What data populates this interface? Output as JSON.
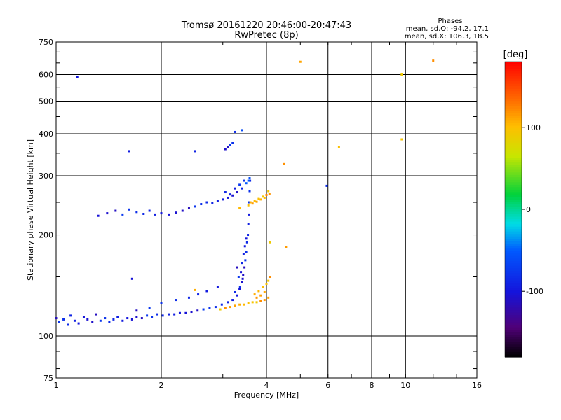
{
  "chart_data": {
    "type": "scatter",
    "title": "Tromsø 20161220 20:46:00-20:47:43",
    "subtitle": "RwPretec (8p)",
    "xlabel": "Frequency [MHz]",
    "ylabel": "Stationary phase Virtual Height [km]",
    "x_scale": "log",
    "y_scale": "log",
    "xlim": [
      1,
      16
    ],
    "ylim": [
      75,
      750
    ],
    "x_ticks": [
      1,
      2,
      4,
      6,
      8,
      10,
      16
    ],
    "x_tick_labels": [
      "1",
      "2",
      "4",
      "6",
      "8",
      "10",
      "16"
    ],
    "y_ticks": [
      75,
      100,
      200,
      300,
      400,
      500,
      600,
      750
    ],
    "y_tick_labels": [
      "75",
      "100",
      "200",
      "300",
      "400",
      "500",
      "600",
      "750"
    ],
    "x_gridlines": [
      2,
      4,
      6,
      8,
      10
    ],
    "y_gridlines": [
      100,
      200,
      300,
      400,
      500,
      600
    ],
    "legend": {
      "heading": "Phases",
      "line1": "mean, sd,O: -94.2, 17.1",
      "line2": "mean, sd,X: 106.3, 18.5"
    },
    "colorbar": {
      "label": "[deg]",
      "min": -180,
      "max": 180,
      "ticks": [
        100,
        0,
        -100
      ],
      "tick_labels": [
        "100",
        "0",
        "-100"
      ]
    },
    "series": [
      {
        "name": "O",
        "points": [
          [
            1.0,
            113
          ],
          [
            1.02,
            110
          ],
          [
            1.05,
            112
          ],
          [
            1.08,
            108
          ],
          [
            1.1,
            115
          ],
          [
            1.13,
            111
          ],
          [
            1.16,
            109
          ],
          [
            1.2,
            114
          ],
          [
            1.23,
            112
          ],
          [
            1.27,
            110
          ],
          [
            1.3,
            116
          ],
          [
            1.34,
            111
          ],
          [
            1.38,
            113
          ],
          [
            1.42,
            110
          ],
          [
            1.46,
            112
          ],
          [
            1.5,
            114
          ],
          [
            1.55,
            111
          ],
          [
            1.6,
            113
          ],
          [
            1.65,
            112
          ],
          [
            1.7,
            114
          ],
          [
            1.76,
            113
          ],
          [
            1.82,
            115
          ],
          [
            1.88,
            114
          ],
          [
            1.95,
            116
          ],
          [
            2.02,
            115
          ],
          [
            2.1,
            116
          ],
          [
            2.18,
            116
          ],
          [
            2.26,
            117
          ],
          [
            2.35,
            117
          ],
          [
            2.44,
            118
          ],
          [
            2.54,
            119
          ],
          [
            2.64,
            120
          ],
          [
            2.75,
            121
          ],
          [
            2.86,
            122
          ],
          [
            2.98,
            124
          ],
          [
            3.1,
            126
          ],
          [
            3.2,
            128
          ],
          [
            3.3,
            132
          ],
          [
            3.35,
            138
          ],
          [
            3.4,
            145
          ],
          [
            3.43,
            152
          ],
          [
            3.46,
            160
          ],
          [
            3.48,
            168
          ],
          [
            3.5,
            178
          ],
          [
            3.52,
            190
          ],
          [
            3.54,
            200
          ],
          [
            3.55,
            215
          ],
          [
            3.56,
            230
          ],
          [
            3.57,
            250
          ],
          [
            3.58,
            270
          ],
          [
            3.59,
            290
          ],
          [
            3.3,
            160
          ],
          [
            3.33,
            150
          ],
          [
            3.36,
            140
          ],
          [
            3.25,
            135
          ],
          [
            3.4,
            165
          ],
          [
            3.44,
            175
          ],
          [
            3.47,
            185
          ],
          [
            3.5,
            195
          ],
          [
            3.38,
            155
          ],
          [
            3.42,
            148
          ],
          [
            1.7,
            119
          ],
          [
            1.85,
            121
          ],
          [
            2.0,
            125
          ],
          [
            2.2,
            128
          ],
          [
            2.4,
            130
          ],
          [
            2.55,
            133
          ],
          [
            2.7,
            136
          ],
          [
            2.9,
            140
          ],
          [
            1.32,
            228
          ],
          [
            1.4,
            232
          ],
          [
            1.48,
            236
          ],
          [
            1.55,
            230
          ],
          [
            1.62,
            238
          ],
          [
            1.7,
            234
          ],
          [
            1.78,
            231
          ],
          [
            1.85,
            236
          ],
          [
            1.92,
            230
          ],
          [
            2.0,
            232
          ],
          [
            2.1,
            230
          ],
          [
            2.2,
            233
          ],
          [
            2.3,
            236
          ],
          [
            2.4,
            240
          ],
          [
            2.5,
            243
          ],
          [
            2.6,
            247
          ],
          [
            2.7,
            250
          ],
          [
            2.8,
            249
          ],
          [
            2.9,
            252
          ],
          [
            3.0,
            255
          ],
          [
            3.1,
            258
          ],
          [
            3.2,
            262
          ],
          [
            3.3,
            268
          ],
          [
            3.4,
            275
          ],
          [
            3.5,
            285
          ],
          [
            3.55,
            290
          ],
          [
            3.58,
            295
          ],
          [
            3.05,
            268
          ],
          [
            3.15,
            264
          ],
          [
            3.25,
            275
          ],
          [
            3.35,
            282
          ],
          [
            3.45,
            290
          ],
          [
            3.05,
            360
          ],
          [
            3.1,
            365
          ],
          [
            3.15,
            370
          ],
          [
            3.2,
            375
          ],
          [
            3.25,
            405
          ],
          [
            3.4,
            410
          ],
          [
            2.5,
            355
          ],
          [
            1.62,
            355
          ],
          [
            1.15,
            590
          ],
          [
            1.65,
            148
          ],
          [
            5.95,
            280
          ]
        ]
      },
      {
        "name": "X",
        "points": [
          [
            2.95,
            120
          ],
          [
            3.05,
            121
          ],
          [
            3.15,
            122
          ],
          [
            3.25,
            123
          ],
          [
            3.35,
            124
          ],
          [
            3.45,
            124
          ],
          [
            3.55,
            125
          ],
          [
            3.65,
            126
          ],
          [
            3.75,
            126
          ],
          [
            3.85,
            127
          ],
          [
            3.95,
            128
          ],
          [
            4.05,
            130
          ],
          [
            3.7,
            133
          ],
          [
            3.8,
            136
          ],
          [
            3.9,
            140
          ],
          [
            4.0,
            143
          ],
          [
            4.05,
            146
          ],
          [
            4.1,
            150
          ],
          [
            3.75,
            130
          ],
          [
            3.85,
            132
          ],
          [
            3.95,
            135
          ],
          [
            3.6,
            250
          ],
          [
            3.7,
            253
          ],
          [
            3.8,
            256
          ],
          [
            3.9,
            260
          ],
          [
            4.0,
            263
          ],
          [
            4.08,
            265
          ],
          [
            3.65,
            248
          ],
          [
            3.75,
            251
          ],
          [
            3.85,
            255
          ],
          [
            3.95,
            258
          ],
          [
            3.55,
            245
          ],
          [
            4.05,
            270
          ],
          [
            4.1,
            190
          ],
          [
            4.5,
            325
          ],
          [
            4.55,
            184
          ],
          [
            5.0,
            655
          ],
          [
            2.5,
            137
          ],
          [
            3.35,
            240
          ],
          [
            6.45,
            365
          ],
          [
            9.75,
            385
          ],
          [
            9.75,
            600
          ],
          [
            12.0,
            660
          ]
        ]
      }
    ]
  }
}
